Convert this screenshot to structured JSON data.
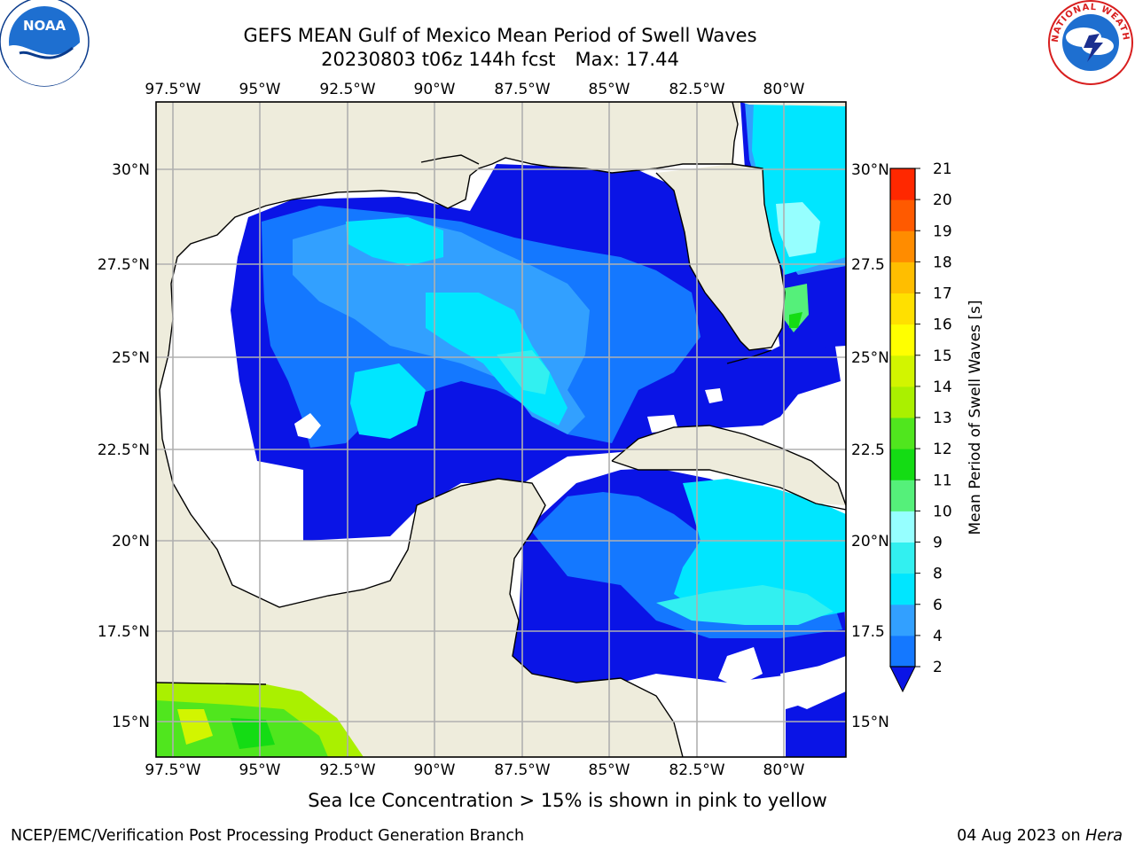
{
  "header": {
    "title": "GEFS MEAN Gulf of Mexico Mean Period of Swell Waves",
    "run": "20230803 t06z 144h fcst",
    "max": "Max: 17.44"
  },
  "logos": {
    "left": {
      "name": "noaa-logo",
      "text": "NOAA",
      "color": "#0a3b8c"
    },
    "right": {
      "name": "nws-logo",
      "text": "NATIONAL WEATHER SERVICE",
      "color": "#d81e1e"
    }
  },
  "map": {
    "lon_ticks": [
      "97.5°W",
      "95°W",
      "92.5°W",
      "90°W",
      "87.5°W",
      "85°W",
      "82.5°W",
      "80°W"
    ],
    "lat_ticks_left": [
      "30°N",
      "27.5°N",
      "25°N",
      "22.5°N",
      "20°N",
      "17.5°N",
      "15°N"
    ],
    "lat_ticks_right": [
      "30°N",
      "27.5",
      "25°N",
      "22.5",
      "20°N",
      "17.5",
      "15°N"
    ],
    "grid": true,
    "land_color": "#eeecdc",
    "ocean_missing_color": "#ffffff"
  },
  "colorbar": {
    "label": "Mean Period of Swell Waves [s]",
    "ticks": [
      "2",
      "4",
      "6",
      "8",
      "9",
      "10",
      "11",
      "12",
      "13",
      "14",
      "15",
      "16",
      "17",
      "18",
      "19",
      "20",
      "21"
    ],
    "colors": [
      "#0a14e6",
      "#1478ff",
      "#32a0ff",
      "#00e6ff",
      "#32f0f0",
      "#96ffff",
      "#55f07a",
      "#14dc14",
      "#50e61e",
      "#aaf000",
      "#d2f500",
      "#ffff00",
      "#ffe000",
      "#ffbe00",
      "#ff8c00",
      "#ff5a00",
      "#ff2800",
      "#f00000"
    ],
    "extend": "min"
  },
  "footer": {
    "note": "Sea Ice Concentration > 15% is shown in pink to yellow",
    "credit": "NCEP/EMC/Verification Post Processing Product Generation Branch",
    "date": "04 Aug 2023 on",
    "host": "Hera"
  }
}
